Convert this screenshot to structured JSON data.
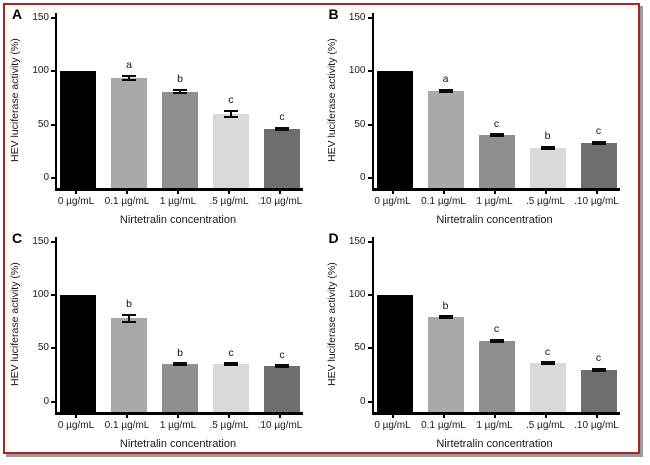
{
  "figure": {
    "border_color": "#a62626",
    "background": "#ffffff",
    "shadow_color": "#9b9b9b",
    "axis_color": "#000000",
    "panel_letters": [
      "A",
      "B",
      "C",
      "D"
    ]
  },
  "chart_data": [
    {
      "type": "bar",
      "panel": "A",
      "ylabel": "HEV luciferase activity (%)",
      "xlabel": "Nirtetralin concentration",
      "ylim": [
        0,
        150
      ],
      "y_ticks": [
        0,
        50,
        100,
        150
      ],
      "grid": false,
      "legend": "none",
      "categories": [
        "0 µg/mL",
        "0.1 µg/mL",
        "1 µg/mL",
        ".5 µg/mL",
        ".10 µg/mL"
      ],
      "values": [
        100,
        94,
        81,
        60,
        46
      ],
      "errors": [
        0,
        3,
        2.5,
        3.5,
        1.5
      ],
      "sig_letters": [
        "",
        "a",
        "b",
        "c",
        "c"
      ],
      "bar_colors": [
        "#000000",
        "#a9a9a9",
        "#8f8f8f",
        "#d9d9d9",
        "#6e6e6e"
      ]
    },
    {
      "type": "bar",
      "panel": "B",
      "ylabel": "HEV luciferase activity (%)",
      "xlabel": "Nirtetralin concentration",
      "ylim": [
        0,
        150
      ],
      "y_ticks": [
        0,
        50,
        100,
        150
      ],
      "grid": false,
      "legend": "none",
      "categories": [
        "0 µg/mL",
        "0.1 µg/mL",
        "1 µg/mL",
        ".5 µg/mL",
        ".10 µg/mL"
      ],
      "values": [
        100,
        82,
        40,
        28,
        33
      ],
      "errors": [
        0,
        1.5,
        1.5,
        2,
        1.5
      ],
      "sig_letters": [
        "",
        "a",
        "c",
        "b",
        "c"
      ],
      "bar_colors": [
        "#000000",
        "#a9a9a9",
        "#8f8f8f",
        "#d9d9d9",
        "#6e6e6e"
      ]
    },
    {
      "type": "bar",
      "panel": "C",
      "ylabel": "HEV luciferase activity (%)",
      "xlabel": "Nirtetralin concentration",
      "ylim": [
        0,
        150
      ],
      "y_ticks": [
        0,
        50,
        100,
        150
      ],
      "grid": false,
      "legend": "none",
      "categories": [
        "0 µg/mL",
        "0.1 µg/mL",
        "1 µg/mL",
        ".5 µg/mL",
        ".10 µg/mL"
      ],
      "values": [
        100,
        78,
        35,
        35,
        33
      ],
      "errors": [
        0,
        4.5,
        1.5,
        1.5,
        1.5
      ],
      "sig_letters": [
        "",
        "b",
        "b",
        "c",
        "c"
      ],
      "bar_colors": [
        "#000000",
        "#a9a9a9",
        "#8f8f8f",
        "#d9d9d9",
        "#6e6e6e"
      ]
    },
    {
      "type": "bar",
      "panel": "D",
      "ylabel": "HEV luciferase activity (%)",
      "xlabel": "Nirtetralin concentration",
      "ylim": [
        0,
        150
      ],
      "y_ticks": [
        0,
        50,
        100,
        150
      ],
      "grid": false,
      "legend": "none",
      "categories": [
        "0 µg/mL",
        "0.1 µg/mL",
        "1 µg/mL",
        ".5 µg/mL",
        ".10 µg/mL"
      ],
      "values": [
        100,
        79,
        57,
        36,
        30
      ],
      "errors": [
        0,
        1.5,
        1.5,
        1.5,
        1.5
      ],
      "sig_letters": [
        "",
        "b",
        "c",
        "c",
        "c"
      ],
      "bar_colors": [
        "#000000",
        "#a9a9a9",
        "#8f8f8f",
        "#d9d9d9",
        "#6e6e6e"
      ]
    }
  ]
}
